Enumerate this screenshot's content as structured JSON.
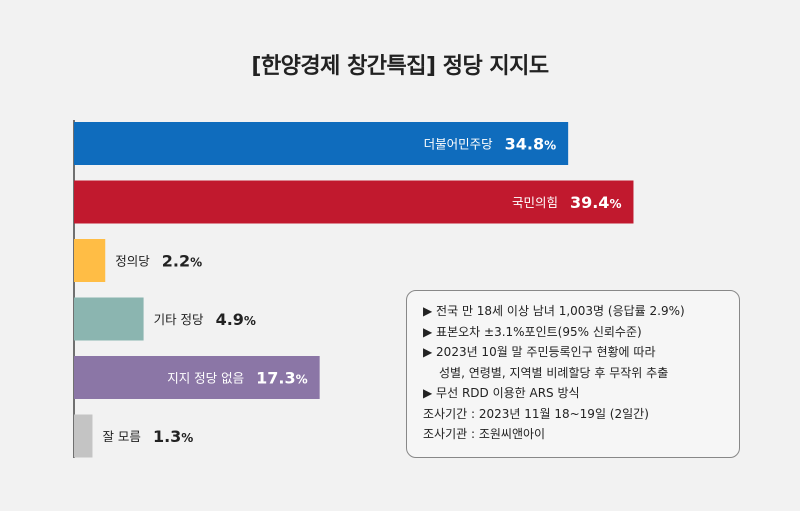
{
  "title": "[한양경제 창간특집] 정당 지지도",
  "chart_data": {
    "type": "bar",
    "orientation": "horizontal",
    "title": "[한양경제 창간특집] 정당 지지도",
    "categories": [
      "더불어민주당",
      "국민의힘",
      "정의당",
      "기타 정당",
      "지지 정당 없음",
      "잘 모름"
    ],
    "values": [
      34.8,
      39.4,
      2.2,
      4.9,
      17.3,
      1.3
    ],
    "value_labels": [
      "34.8",
      "39.4",
      "2.2",
      "4.9",
      "17.3",
      "1.3"
    ],
    "unit": "%",
    "colors": [
      "#0f6cbd",
      "#c1192e",
      "#ffbd45",
      "#8bb5b0",
      "#8b76a6",
      "#c4c4c4"
    ],
    "label_position": [
      "inside",
      "inside",
      "outside",
      "outside",
      "inside",
      "outside"
    ],
    "xlim": [
      0,
      40
    ],
    "grid": false,
    "legend": "none"
  },
  "notes": {
    "lines": [
      "▶ 전국 만 18세 이상 남녀 1,003명 (응답률 2.9%)",
      "▶ 표본오차 ±3.1%포인트(95% 신뢰수준)",
      "▶ 2023년 10월 말 주민등록인구 현황에 따라",
      "성별, 연령별, 지역별 비례할당 후 무작위 추출",
      "▶ 무선 RDD 이용한 ARS 방식",
      "조사기간 : 2023년 11월 18~19일 (2일간)",
      "조사기관 : 조원씨앤아이"
    ]
  }
}
